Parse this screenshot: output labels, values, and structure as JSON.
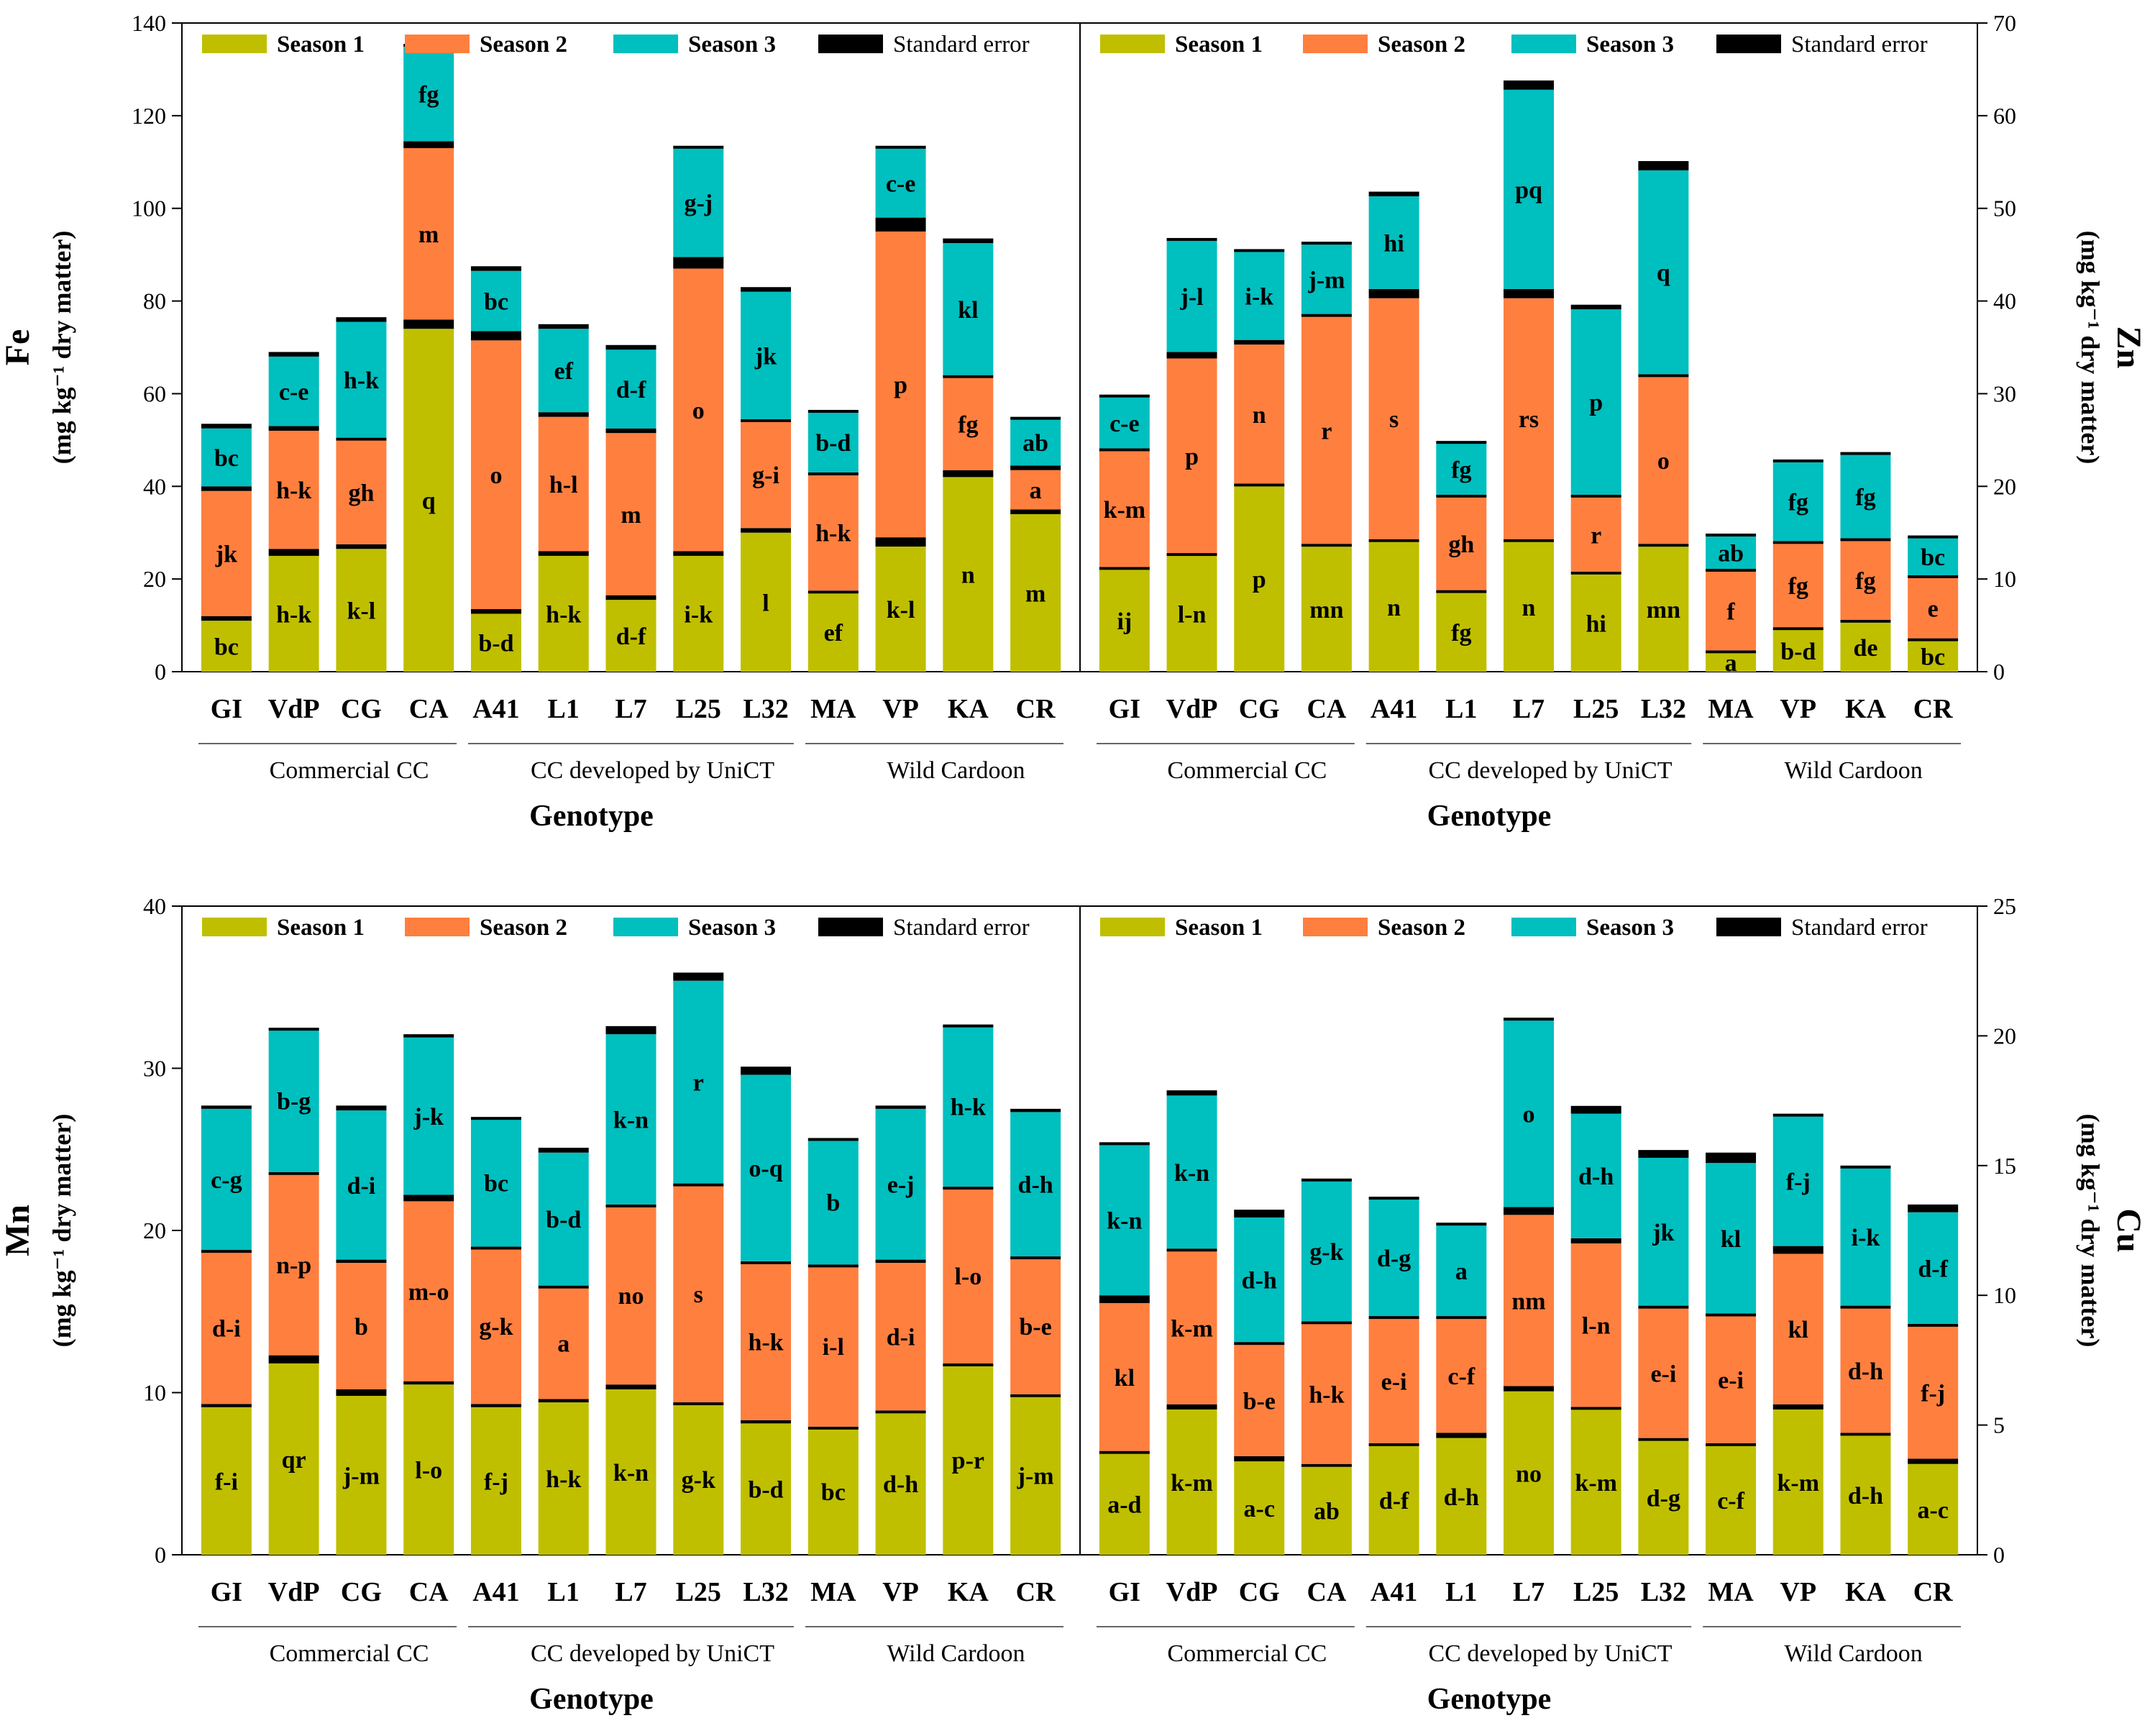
{
  "chart_data": [
    {
      "type": "bar",
      "stacked": true,
      "id": "fe",
      "title": "",
      "ylabel_element": "Fe",
      "ylabel_unit": "(mg kg⁻¹ dry matter)",
      "xlabel": "Genotype",
      "yaxis_side": "left",
      "ylim": [
        0,
        140
      ],
      "yticks": [
        0,
        20,
        40,
        60,
        80,
        100,
        120,
        140
      ],
      "categories": [
        "GI",
        "VdP",
        "CG",
        "CA",
        "A41",
        "L1",
        "L7",
        "L25",
        "L32",
        "MA",
        "VP",
        "KA",
        "CR"
      ],
      "groups": [
        {
          "label": "Commercial CC",
          "start": 0,
          "end": 3
        },
        {
          "label": "CC developed by UniCT",
          "start": 4,
          "end": 8
        },
        {
          "label": "Wild Cardoon",
          "start": 9,
          "end": 12
        }
      ],
      "legend": [
        "Season 1",
        "Season 2",
        "Season 3",
        "Standard error"
      ],
      "series": [
        {
          "name": "Season 1",
          "color": "#bfbf00",
          "values": [
            11,
            25,
            26.5,
            74,
            12.5,
            25,
            15.5,
            25,
            30,
            17,
            27,
            42,
            34
          ],
          "letters": [
            "bc",
            "h-k",
            "k-l",
            "q",
            "b-d",
            "h-k",
            "d-f",
            "i-k",
            "l",
            "ef",
            "k-l",
            "n",
            "m"
          ]
        },
        {
          "name": "Season 2",
          "color": "#ff7f3f",
          "values": [
            27,
            25.5,
            22.5,
            37,
            58,
            29,
            35,
            61,
            23,
            25,
            66,
            20,
            8.5
          ],
          "letters": [
            "jk",
            "h-k",
            "gh",
            "m",
            "o",
            "h-l",
            "m",
            "o",
            "g-i",
            "h-k",
            "p",
            "fg",
            "a"
          ]
        },
        {
          "name": "Season 3",
          "color": "#00bfbf",
          "values": [
            12.5,
            15,
            25,
            20.5,
            13,
            18,
            17,
            23.5,
            27.5,
            13,
            15,
            28.5,
            10
          ],
          "letters": [
            "bc",
            "c-e",
            "h-k",
            "fg",
            "bc",
            "ef",
            "d-f",
            "g-j",
            "jk",
            "b-d",
            "c-e",
            "kl",
            "ab"
          ]
        }
      ],
      "errors": [
        [
          1,
          1.5,
          1,
          2,
          1,
          1,
          1,
          1,
          1,
          0.5,
          2,
          1.5,
          1
        ],
        [
          1,
          1,
          0.5,
          1.5,
          2,
          1,
          1,
          2.5,
          0.5,
          0.5,
          3,
          0.5,
          1
        ],
        [
          1,
          1,
          1,
          0.5,
          1,
          1,
          1,
          0.5,
          1,
          0.5,
          0.5,
          1,
          0.5
        ]
      ]
    },
    {
      "type": "bar",
      "stacked": true,
      "id": "zn",
      "title": "",
      "ylabel_element": "Zn",
      "ylabel_unit": "(mg kg⁻¹ dry matter)",
      "xlabel": "Genotype",
      "yaxis_side": "right",
      "ylim": [
        0,
        70
      ],
      "yticks": [
        0,
        10,
        20,
        30,
        40,
        50,
        60,
        70
      ],
      "categories": [
        "GI",
        "VdP",
        "CG",
        "CA",
        "A41",
        "L1",
        "L7",
        "L25",
        "L32",
        "MA",
        "VP",
        "KA",
        "CR"
      ],
      "groups": [
        {
          "label": "Commercial CC",
          "start": 0,
          "end": 3
        },
        {
          "label": "CC developed by UniCT",
          "start": 4,
          "end": 8
        },
        {
          "label": "Wild Cardoon",
          "start": 9,
          "end": 12
        }
      ],
      "legend": [
        "Season 1",
        "Season 2",
        "Season 3",
        "Standard error"
      ],
      "series": [
        {
          "name": "Season 1",
          "color": "#bfbf00",
          "values": [
            11,
            12.5,
            20,
            13.5,
            14,
            8.5,
            14,
            10.5,
            13.5,
            2,
            4.5,
            5.3,
            3.3
          ],
          "letters": [
            "ij",
            "l-n",
            "p",
            "mn",
            "n",
            "fg",
            "n",
            "hi",
            "mn",
            "a",
            "b-d",
            "de",
            "bc"
          ]
        },
        {
          "name": "Season 2",
          "color": "#ff7f3f",
          "values": [
            12.5,
            21,
            15,
            24.5,
            26,
            10,
            26,
            8,
            18,
            8.5,
            9,
            8.5,
            6.5
          ],
          "letters": [
            "k-m",
            "p",
            "n",
            "r",
            "s",
            "gh",
            "rs",
            "r",
            "o",
            "f",
            "fg",
            "fg",
            "e"
          ]
        },
        {
          "name": "Season 3",
          "color": "#00bfbf",
          "values": [
            5.5,
            12,
            9.5,
            7.5,
            10,
            5.5,
            21.5,
            20,
            22,
            3.5,
            8.5,
            9,
            4
          ],
          "letters": [
            "c-e",
            "j-l",
            "i-k",
            "j-m",
            "hi",
            "fg",
            "pq",
            "p",
            "q",
            "ab",
            "fg",
            "fg",
            "bc"
          ]
        }
      ],
      "errors": [
        [
          0.3,
          0.3,
          0.3,
          0.3,
          0.3,
          0.3,
          0.3,
          0.3,
          0.3,
          0.3,
          0.3,
          0.3,
          0.3
        ],
        [
          0.3,
          0.7,
          0.5,
          0.3,
          1,
          0.3,
          1,
          0.3,
          0.3,
          0.3,
          0.3,
          0.3,
          0.3
        ],
        [
          0.3,
          0.3,
          0.3,
          0.3,
          0.5,
          0.3,
          1,
          0.5,
          1,
          0.3,
          0.3,
          0.3,
          0.3
        ]
      ]
    },
    {
      "type": "bar",
      "stacked": true,
      "id": "mn",
      "title": "",
      "ylabel_element": "Mn",
      "ylabel_unit": "(mg kg⁻¹ dry matter)",
      "xlabel": "Genotype",
      "yaxis_side": "left",
      "ylim": [
        0,
        40
      ],
      "yticks": [
        0,
        10,
        20,
        30,
        40
      ],
      "categories": [
        "GI",
        "VdP",
        "CG",
        "CA",
        "A41",
        "L1",
        "L7",
        "L25",
        "L32",
        "MA",
        "VP",
        "KA",
        "CR"
      ],
      "groups": [
        {
          "label": "Commercial CC",
          "start": 0,
          "end": 3
        },
        {
          "label": "CC developed by UniCT",
          "start": 4,
          "end": 8
        },
        {
          "label": "Wild Cardoon",
          "start": 9,
          "end": 12
        }
      ],
      "legend": [
        "Season 1",
        "Season 2",
        "Season 3",
        "Standard error"
      ],
      "series": [
        {
          "name": "Season 1",
          "color": "#bfbf00",
          "values": [
            9.1,
            11.8,
            9.8,
            10.5,
            9.1,
            9.4,
            10.2,
            9.3,
            8.1,
            7.8,
            8.8,
            11.7,
            9.8
          ],
          "letters": [
            "f-i",
            "qr",
            "j-m",
            "l-o",
            "f-j",
            "h-k",
            "k-n",
            "g-k",
            "b-d",
            "bc",
            "d-h",
            "p-r",
            "j-m"
          ]
        },
        {
          "name": "Season 2",
          "color": "#ff7f3f",
          "values": [
            9.4,
            11.2,
            7.8,
            11.1,
            9.6,
            6.9,
            11,
            13.4,
            9.7,
            9.9,
            9.1,
            10.8,
            8.4
          ],
          "letters": [
            "d-i",
            "n-p",
            "b",
            "m-o",
            "g-k",
            "a",
            "no",
            "s",
            "h-k",
            "i-l",
            "d-i",
            "l-o",
            "b-e"
          ]
        },
        {
          "name": "Season 3",
          "color": "#00bfbf",
          "values": [
            8.7,
            8.8,
            9.2,
            9.7,
            7.9,
            8.2,
            10.5,
            12.5,
            11.5,
            7.7,
            9.3,
            9.9,
            8.9
          ],
          "letters": [
            "c-g",
            "b-g",
            "d-i",
            "j-k",
            "bc",
            "b-d",
            "k-n",
            "r",
            "o-q",
            "b",
            "e-j",
            "h-k",
            "d-h"
          ]
        }
      ],
      "errors": [
        [
          0.2,
          0.5,
          0.4,
          0.2,
          0.2,
          0.2,
          0.3,
          0.1,
          0.2,
          0.1,
          0.1,
          0.1,
          0.1
        ],
        [
          0.1,
          0.1,
          0.2,
          0.4,
          0.1,
          0.1,
          0.1,
          0.1,
          0.1,
          0.1,
          0.2,
          0.1,
          0.1
        ],
        [
          0.2,
          0.1,
          0.3,
          0.2,
          0.1,
          0.3,
          0.5,
          0.5,
          0.5,
          0.1,
          0.2,
          0.1,
          0.2
        ]
      ]
    },
    {
      "type": "bar",
      "stacked": true,
      "id": "cu",
      "title": "",
      "ylabel_element": "Cu",
      "ylabel_unit": "(mg kg⁻¹ dry matter)",
      "xlabel": "Genotype",
      "yaxis_side": "right",
      "ylim": [
        0,
        25
      ],
      "yticks": [
        0,
        5,
        10,
        15,
        20,
        25
      ],
      "categories": [
        "GI",
        "VdP",
        "CG",
        "CA",
        "A41",
        "L1",
        "L7",
        "L25",
        "L32",
        "MA",
        "VP",
        "KA",
        "CR"
      ],
      "groups": [
        {
          "label": "Commercial CC",
          "start": 0,
          "end": 3
        },
        {
          "label": "CC developed by UniCT",
          "start": 4,
          "end": 8
        },
        {
          "label": "Wild Cardoon",
          "start": 9,
          "end": 12
        }
      ],
      "legend": [
        "Season 1",
        "Season 2",
        "Season 3",
        "Standard error"
      ],
      "series": [
        {
          "name": "Season 1",
          "color": "#bfbf00",
          "values": [
            3.9,
            5.6,
            3.6,
            3.4,
            4.2,
            4.5,
            6.3,
            5.6,
            4.4,
            4.2,
            5.6,
            4.6,
            3.5
          ],
          "letters": [
            "a-d",
            "k-m",
            "a-c",
            "ab",
            "d-f",
            "d-h",
            "no",
            "k-m",
            "d-g",
            "c-f",
            "k-m",
            "d-h",
            "a-c"
          ]
        },
        {
          "name": "Season 2",
          "color": "#ff7f3f",
          "values": [
            5.7,
            5.9,
            4.3,
            5.4,
            4.8,
            4.4,
            6.6,
            6.3,
            5,
            4.9,
            5.8,
            4.8,
            5.1
          ],
          "letters": [
            "kl",
            "k-m",
            "b-e",
            "h-k",
            "e-i",
            "c-f",
            "nm",
            "l-n",
            "e-i",
            "e-i",
            "kl",
            "d-h",
            "f-j"
          ]
        },
        {
          "name": "Season 3",
          "color": "#00bfbf",
          "values": [
            5.8,
            5.9,
            4.8,
            5.4,
            4.5,
            3.5,
            7.2,
            4.8,
            5.7,
            5.8,
            5,
            5.3,
            4.3
          ],
          "letters": [
            "k-n",
            "k-n",
            "d-h",
            "g-k",
            "d-g",
            "a",
            "o",
            "d-h",
            "jk",
            "kl",
            "f-j",
            "i-k",
            "d-f"
          ]
        }
      ],
      "errors": [
        [
          0.1,
          0.2,
          0.2,
          0.1,
          0.1,
          0.2,
          0.2,
          0.1,
          0.1,
          0.1,
          0.2,
          0.1,
          0.2
        ],
        [
          0.3,
          0.1,
          0.1,
          0.1,
          0.1,
          0.1,
          0.3,
          0.2,
          0.1,
          0.1,
          0.3,
          0.1,
          0.1
        ],
        [
          0.1,
          0.2,
          0.3,
          0.1,
          0.1,
          0.1,
          0.1,
          0.3,
          0.3,
          0.4,
          0.1,
          0.1,
          0.3
        ]
      ]
    }
  ]
}
